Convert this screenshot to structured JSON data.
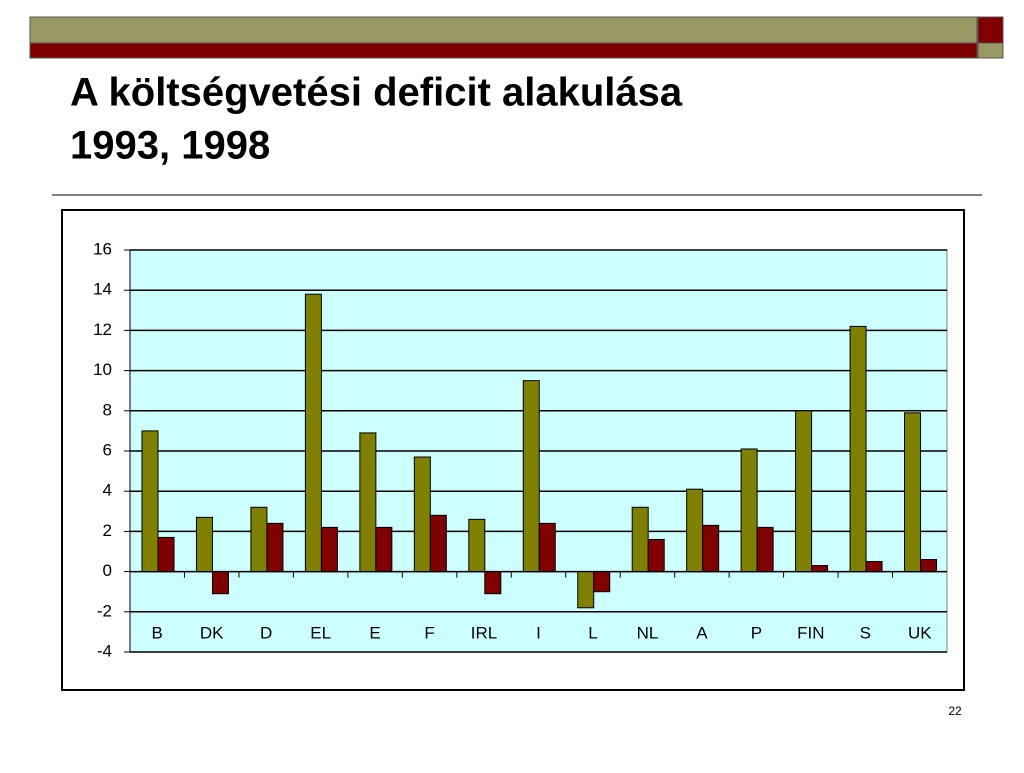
{
  "slide": {
    "title": [
      "A költségvetési deficit alakulása",
      "1993, 1998"
    ],
    "page_number": "22"
  },
  "chart_data": {
    "type": "bar",
    "categories": [
      "B",
      "DK",
      "D",
      "EL",
      "E",
      "F",
      "IRL",
      "I",
      "L",
      "NL",
      "A",
      "P",
      "FIN",
      "S",
      "UK"
    ],
    "series": [
      {
        "color": "#808000",
        "values": [
          7.0,
          2.7,
          3.2,
          13.8,
          6.9,
          5.7,
          2.6,
          9.5,
          -1.8,
          3.2,
          4.1,
          6.1,
          8.0,
          12.2,
          7.9
        ]
      },
      {
        "color": "#800000",
        "values": [
          1.7,
          -1.1,
          2.4,
          2.2,
          2.2,
          2.8,
          -1.1,
          2.4,
          -1.0,
          1.6,
          2.3,
          2.2,
          0.3,
          0.5,
          0.6
        ]
      }
    ],
    "ylim": [
      -4,
      16
    ],
    "yticks": [
      -4,
      -2,
      0,
      2,
      4,
      6,
      8,
      10,
      12,
      14,
      16
    ],
    "grid": true,
    "plot_background": "#ccffff"
  }
}
